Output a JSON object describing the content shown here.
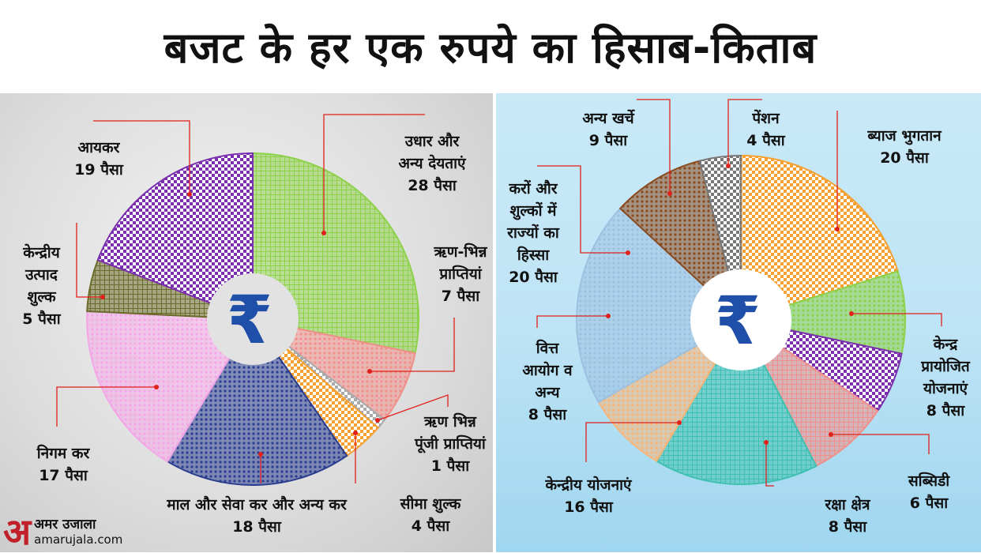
{
  "title": "बजट के हर एक रुपये का हिसाब-किताब",
  "center_symbol": "₹",
  "logo": {
    "mark": "अ",
    "name": "अमर उजाला",
    "url": "amarujala.com"
  },
  "chart_data": [
    {
      "type": "pie",
      "title": "",
      "section": "income",
      "unit": "पैसा",
      "slices": [
        {
          "label": "उधार और\nअन्य देयताएं\n28 पैसा",
          "value": 28,
          "color": "#8ed14a",
          "pattern": "grid"
        },
        {
          "label": "ऋण-भिन्न\nप्राप्तियां\n7 पैसा",
          "value": 7,
          "color": "#f0908a",
          "pattern": "dots"
        },
        {
          "label": "ऋण भिन्न\nपूंजी प्राप्तियां\n1 पैसा",
          "value": 1,
          "color": "#aaaaaa",
          "pattern": "checker"
        },
        {
          "label": "सीमा शुल्क\n4 पैसा",
          "value": 4,
          "color": "#f5a030",
          "pattern": "checker"
        },
        {
          "label": "माल और सेवा कर और अन्य कर\n18 पैसा",
          "value": 18,
          "color": "#2a3d8f",
          "pattern": "dots"
        },
        {
          "label": "निगम कर\n17 पैसा",
          "value": 17,
          "color": "#f4a7e6",
          "pattern": "dots"
        },
        {
          "label": "केन्द्रीय\nउत्पाद\nशुल्क\n5 पैसा",
          "value": 5,
          "color": "#6b6b2a",
          "pattern": "grid"
        },
        {
          "label": "आयकर\n19 पैसा",
          "value": 19,
          "color": "#7a2fae",
          "pattern": "checker"
        }
      ]
    },
    {
      "type": "pie",
      "title": "",
      "section": "expenditure",
      "unit": "पैसा",
      "slices": [
        {
          "label": "ब्याज भुगतान\n20 पैसा",
          "value": 20,
          "color": "#f5a030",
          "pattern": "checker"
        },
        {
          "label": "केन्द्र\nप्रायोजित\nयोजनाएं\n8 पैसा",
          "value": 8,
          "color": "#8ed14a",
          "pattern": "dots"
        },
        {
          "label": "सब्सिडी\n6 पैसा",
          "value": 6,
          "color": "#7a2fae",
          "pattern": "checker"
        },
        {
          "label": "रक्षा क्षेत्र\n8 पैसा",
          "value": 8,
          "color": "#f0908a",
          "pattern": "grid"
        },
        {
          "label": "केन्द्रीय योजनाएं\n16 पैसा",
          "value": 16,
          "color": "#3fc0b0",
          "pattern": "grid"
        },
        {
          "label": "वित्त\nआयोग व\nअन्य\n8 पैसा",
          "value": 8,
          "color": "#f7b57a",
          "pattern": "dots"
        },
        {
          "label": "करों और\nशुल्कों में\nराज्यों का\nहिस्सा\n20 पैसा",
          "value": 20,
          "color": "#9cc0e0",
          "pattern": "dots"
        },
        {
          "label": "अन्य खर्चे\n9 पैसा",
          "value": 9,
          "color": "#8a4a1e",
          "pattern": "dots"
        },
        {
          "label": "पेंशन\n4 पैसा",
          "value": 4,
          "color": "#777777",
          "pattern": "checker"
        }
      ]
    }
  ]
}
